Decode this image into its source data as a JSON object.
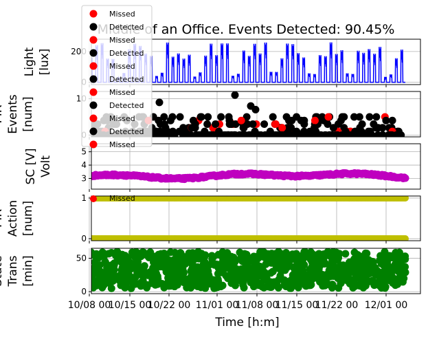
{
  "title": "Middle of an Office. Events Detected: 90.45%",
  "xlabel": "Time [h:m]",
  "colors": {
    "light": "#0000ff",
    "pir": "#000000",
    "missed": "#ff0000",
    "volt": "#bf00bf",
    "action": "#bfbf00",
    "state": "#008000",
    "legend_bg": "#ffffff"
  },
  "chart_data": [
    {
      "type": "line",
      "ylabel": "Light\n[lux]",
      "ylim": [
        -15,
        280
      ],
      "yticks": [
        0,
        200
      ],
      "grid": true,
      "series": [
        {
          "values_description_free": true,
          "typical_max": 250,
          "typical_min": 0
        }
      ]
    },
    {
      "type": "scatter",
      "ylabel": "PIR\nEvents\n[num]",
      "ylim": [
        -0.5,
        12
      ],
      "yticks": [
        0,
        10
      ],
      "grid": true,
      "series": [
        {
          "name": "Missed",
          "color": "#ff0000"
        },
        {
          "name": "Detected",
          "color": "#000000"
        }
      ]
    },
    {
      "type": "scatter",
      "ylabel": "SC [V]\nVolt",
      "ylim": [
        2.2,
        5.6
      ],
      "yticks": [
        3,
        4,
        5
      ],
      "grid": true,
      "series": [
        {
          "baseline": 3.2,
          "min": 2.8,
          "max": 3.45
        }
      ]
    },
    {
      "type": "scatter",
      "ylabel": "PIR\nAction\n[num]",
      "ylim": [
        -0.05,
        1.05
      ],
      "yticks": [
        0,
        1
      ],
      "grid": true,
      "series": [
        {
          "levels": [
            0,
            1
          ]
        }
      ]
    },
    {
      "type": "scatter",
      "ylabel": "State\nTrans\n[min]",
      "ylim": [
        -3,
        65
      ],
      "yticks": [
        0,
        50
      ],
      "grid": true,
      "series": [
        {
          "min": 0,
          "max": 60
        }
      ]
    }
  ],
  "xticks": [
    "10/08 00",
    "10/15 00",
    "10/22 00",
    "11/01 00",
    "11/08 00",
    "11/15 00",
    "11/22 00",
    "12/01 00"
  ],
  "legend": [
    {
      "label": "Missed"
    },
    {
      "label": "Detected"
    },
    {
      "label": "Missed"
    },
    {
      "label": "Detected"
    },
    {
      "label": "Missed"
    },
    {
      "label": "Detected"
    },
    {
      "label": "Missed"
    },
    {
      "label": "Detected"
    },
    {
      "label": "Missed"
    },
    {
      "label": "Detected"
    },
    {
      "label": "Missed"
    }
  ],
  "legend_below_fragment": "Missed"
}
